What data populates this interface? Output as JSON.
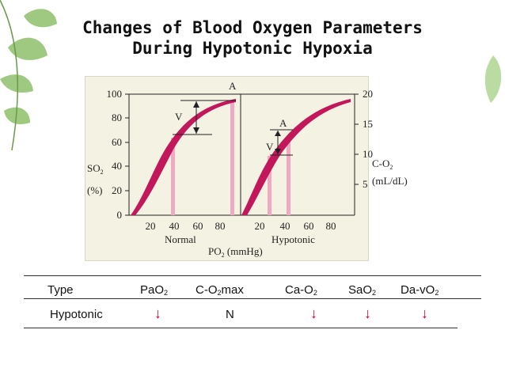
{
  "title": {
    "line1": "Changes of Blood Oxygen Parameters",
    "line2": "During Hypotonic Hypoxia"
  },
  "figure": {
    "left_axis_ticks": [
      "0",
      "20",
      "40",
      "60",
      "80",
      "100"
    ],
    "left_axis_label_main": "SO",
    "left_axis_label_sub": "2",
    "left_axis_unit": "(%)",
    "right_axis_ticks": [
      "5",
      "10",
      "15",
      "20"
    ],
    "right_axis_label_main": "C-O",
    "right_axis_label_sub": "2",
    "right_axis_unit": "(mL/dL)",
    "x_ticks_left": [
      "20",
      "40",
      "60",
      "80"
    ],
    "x_ticks_right": [
      "20",
      "40",
      "60",
      "80"
    ],
    "x_label_main": "PO",
    "x_label_sub": "2",
    "x_unit": " (mmHg)",
    "panel_left_label": "Normal",
    "panel_right_label": "Hypotonic",
    "marker_a": "A",
    "marker_v": "V",
    "curve_color": "#c2185b",
    "guide_color": "#f0a9c2"
  },
  "table": {
    "headers": [
      {
        "main": "Type",
        "sub": "",
        "tail": ""
      },
      {
        "main": "PaO",
        "sub": "2",
        "tail": ""
      },
      {
        "main": "C-O",
        "sub": "2",
        "tail": "max"
      },
      {
        "main": "Ca-O",
        "sub": "2",
        "tail": ""
      },
      {
        "main": "SaO",
        "sub": "2",
        "tail": ""
      },
      {
        "main": "Da-vO",
        "sub": "2",
        "tail": ""
      }
    ],
    "row": [
      "Hypotonic",
      "↓",
      "N",
      "↓",
      "↓",
      "↓"
    ],
    "arrow_color": "#c8002d"
  }
}
